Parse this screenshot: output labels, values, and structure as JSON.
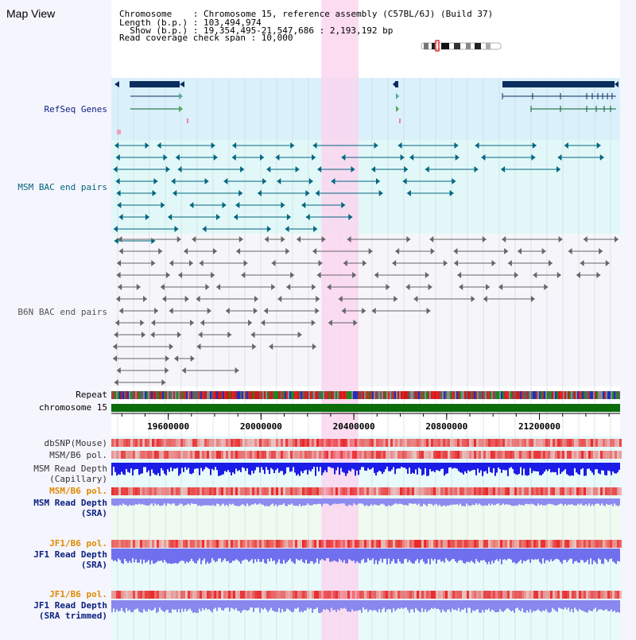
{
  "view": {
    "title": "Map View",
    "info": [
      "Chromosome    : Chromosome 15, reference assembly (C57BL/6J) (Build 37)",
      "Length (b.p.) : 103,494,974",
      "  Show (b.p.) : 19,354,495-21,547,686 : 2,193,192 bp",
      "Read coverage check span : 10,000"
    ]
  },
  "tracks": {
    "refseq": "RefSeq Genes",
    "msm_bac": "MSM BAC end pairs",
    "b6n_bac": "B6N BAC end pairs",
    "repeat": "Repeat",
    "chromosome": "chromosome 15",
    "dbsnp": "dbSNP(Mouse)",
    "msm_pol_1": "MSM/B6 pol.",
    "msm_depth_cap": [
      "MSM Read Depth",
      "(Capillary)"
    ],
    "msm_pol_2": "MSM/B6 pol.",
    "msm_depth_sra": [
      "MSM Read Depth",
      "(SRA)"
    ],
    "jf1_pol_1": "JF1/B6 pol.",
    "jf1_depth_sra": [
      "JF1 Read Depth",
      "(SRA)"
    ],
    "jf1_pol_2": "JF1/B6 pol.",
    "jf1_depth_trim": [
      "JF1 Read Depth",
      "(SRA trimmed)"
    ]
  },
  "axis": {
    "ticks": [
      "19600000",
      "20000000",
      "20400000",
      "20800000",
      "21200000"
    ],
    "tick_values": [
      19600000,
      20000000,
      20400000,
      20800000,
      21200000
    ],
    "range": [
      19354495,
      21547686
    ]
  },
  "highlight": {
    "start": 20260000,
    "end": 20420000
  },
  "colors": {
    "refseq_bg": "#daf0fa",
    "msm_bg": "#e2f8f8",
    "b6n_bg": "#f6f6fa",
    "highlight": "#fad6ee",
    "refseq_gene": "#0b2d5e",
    "msm_label": "#006680",
    "gene_label": "#0a1f80",
    "pol_orange": "#e08a00",
    "depth_blue": "#1c1ce8",
    "chromosome_green": "#0b6e0b",
    "depth_light": "#8c8cf0"
  }
}
